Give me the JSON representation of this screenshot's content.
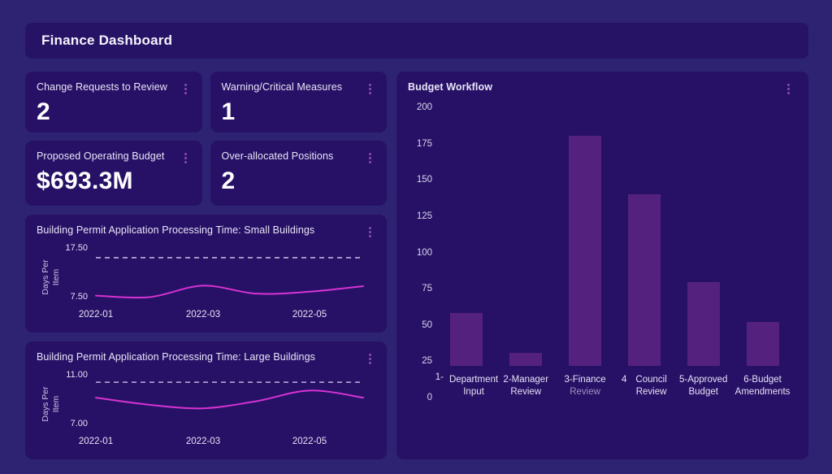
{
  "header": {
    "title": "Finance Dashboard"
  },
  "kpi_cards": [
    {
      "title": "Change Requests to Review",
      "value": "2"
    },
    {
      "title": "Warning/Critical Measures",
      "value": "1"
    },
    {
      "title": "Proposed Operating Budget",
      "value": "$693.3M"
    },
    {
      "title": "Over-allocated Positions",
      "value": "2"
    }
  ],
  "line_cards": [
    {
      "title": "Building Permit Application Processing Time: Small Buildings",
      "ylabel_line1": "Days Per",
      "ylabel_line2": "Item",
      "ytick_top": "17.50",
      "ytick_bottom": "7.50",
      "xticks": [
        "2022-01",
        "2022-03",
        "2022-05"
      ]
    },
    {
      "title": "Building Permit Application Processing Time: Large Buildings",
      "ylabel_line1": "Days Per",
      "ylabel_line2": "Item",
      "ytick_top": "11.00",
      "ytick_bottom": "7.00",
      "xticks": [
        "2022-01",
        "2022-03",
        "2022-05"
      ]
    }
  ],
  "bar_card": {
    "title": "Budget Workflow",
    "yticks": [
      "200",
      "175",
      "150",
      "125",
      "100",
      "75",
      "50",
      "25",
      "0"
    ],
    "xlabels": [
      {
        "prefix": "1-",
        "line1": "Department",
        "line2": "Input"
      },
      {
        "prefix": "",
        "line1": "2-Manager",
        "line2": "Review"
      },
      {
        "prefix": "",
        "line1": "3-Finance",
        "line2": "Review"
      },
      {
        "prefix": "4",
        "line1": "Council",
        "line2": "Review"
      },
      {
        "prefix": "",
        "line1": "5-Approved",
        "line2": "Budget"
      },
      {
        "prefix": "",
        "line1": "6-Budget",
        "line2": "Amendments"
      }
    ]
  },
  "colors": {
    "page_bg": "#2e2373",
    "card_bg": "#271166",
    "bar_fill": "#55217e",
    "line_stroke": "#d633d2",
    "threshold_stroke": "#bcb5dc",
    "menu_dots": "#8a4bae",
    "text_primary": "#ffffff",
    "text_secondary": "#d9d4ee"
  },
  "chart_data": [
    {
      "type": "line",
      "title": "Building Permit Application Processing Time: Small Buildings",
      "xlabel": "",
      "ylabel": "Days Per Item",
      "x": [
        "2022-01",
        "2022-02",
        "2022-03",
        "2022-04",
        "2022-05",
        "2022-06"
      ],
      "values": [
        8.0,
        7.7,
        10.0,
        8.4,
        8.8,
        9.9
      ],
      "threshold": 15.6,
      "yticks": [
        7.5,
        17.5
      ],
      "ylim": [
        6.8,
        18.2
      ],
      "x_tick_labels": [
        "2022-01",
        "2022-03",
        "2022-05"
      ],
      "grid": false,
      "legend": false,
      "line_color": "#d633d2",
      "threshold_color": "#bcb5dc"
    },
    {
      "type": "line",
      "title": "Building Permit Application Processing Time: Large Buildings",
      "xlabel": "",
      "ylabel": "Days Per Item",
      "x": [
        "2022-01",
        "2022-02",
        "2022-03",
        "2022-04",
        "2022-05",
        "2022-06"
      ],
      "values": [
        9.2,
        8.6,
        8.3,
        8.9,
        9.8,
        9.2
      ],
      "threshold": 10.5,
      "yticks": [
        7.0,
        11.0
      ],
      "ylim": [
        6.6,
        11.4
      ],
      "x_tick_labels": [
        "2022-01",
        "2022-03",
        "2022-05"
      ],
      "grid": false,
      "legend": false,
      "line_color": "#d633d2",
      "threshold_color": "#bcb5dc"
    },
    {
      "type": "bar",
      "title": "Budget Workflow",
      "categories": [
        "1-Department Input",
        "2-Manager Review",
        "3-Finance Review",
        "4-Council Review",
        "5-Approved Budget",
        "6-Budget Amendments"
      ],
      "values": [
        41,
        10,
        178,
        133,
        65,
        34
      ],
      "ylim": [
        0,
        200
      ],
      "ytick_step": 25,
      "grid": false,
      "legend": false,
      "bar_color": "#55217e"
    }
  ]
}
